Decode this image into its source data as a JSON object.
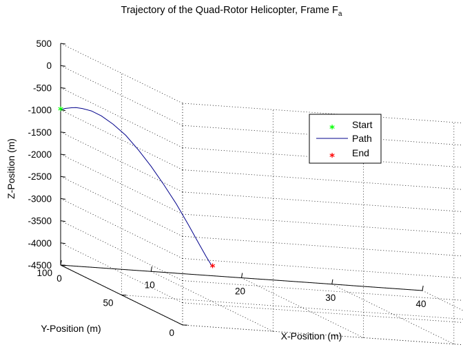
{
  "chart_data": {
    "type": "line3d",
    "title": "Trajectory of the Quad-Rotor Helicopter, Frame F",
    "title_subscript": "a",
    "xlabel": "X-Position (m)",
    "ylabel": "Y-Position (m)",
    "zlabel": "Z-Position (m)",
    "xlim": [
      0,
      40
    ],
    "ylim": [
      0,
      100
    ],
    "zlim": [
      -4500,
      500
    ],
    "xticks": [
      "0",
      "10",
      "20",
      "30",
      "40"
    ],
    "yticks": [
      "0",
      "50",
      "100"
    ],
    "zticks": [
      "500",
      "0",
      "-500",
      "-1000",
      "-1500",
      "-2000",
      "-2500",
      "-3000",
      "-3500",
      "-4000",
      "-4500"
    ],
    "grid": true,
    "series": [
      {
        "name": "Path",
        "color": "#00008B",
        "points": [
          [
            0,
            100,
            -1000
          ],
          [
            0.5,
            100,
            -960
          ],
          [
            1.2,
            100,
            -935
          ],
          [
            1.7,
            100,
            -925
          ],
          [
            2.4,
            100,
            -935
          ],
          [
            3.4,
            100,
            -975
          ],
          [
            4.5,
            100,
            -1070
          ],
          [
            5.8,
            100,
            -1240
          ],
          [
            7.2,
            100,
            -1470
          ],
          [
            8.6,
            100,
            -1780
          ],
          [
            10.0,
            100,
            -2130
          ],
          [
            11.4,
            100,
            -2520
          ],
          [
            12.8,
            100,
            -2940
          ],
          [
            14.1,
            100,
            -3380
          ],
          [
            15.3,
            100,
            -3800
          ],
          [
            16.1,
            100,
            -4080
          ],
          [
            16.7,
            100,
            -4270
          ],
          [
            16.8,
            100,
            -4300
          ]
        ]
      }
    ],
    "markers": [
      {
        "name": "Start",
        "color": "#00FF00",
        "symbol": "*",
        "point": [
          0,
          100,
          -1000
        ]
      },
      {
        "name": "End",
        "color": "#FF0000",
        "symbol": "*",
        "point": [
          16.8,
          100,
          -4300
        ]
      }
    ],
    "legend": {
      "placement": "right",
      "entries": [
        {
          "label": "Start",
          "color": "#00FF00",
          "kind": "marker",
          "symbol": "*"
        },
        {
          "label": "Path",
          "color": "#00008B",
          "kind": "line"
        },
        {
          "label": "End",
          "color": "#FF0000",
          "kind": "marker",
          "symbol": "*"
        }
      ]
    }
  }
}
